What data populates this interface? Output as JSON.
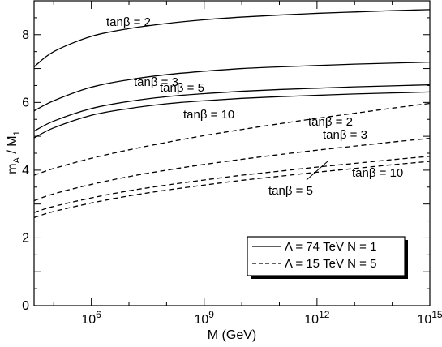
{
  "chart_data": {
    "type": "line",
    "title": "",
    "xlabel": "M (GeV)",
    "ylabel": "m_A / M_1",
    "x_scale": "log10",
    "xlim": [
      30000,
      1000000000000000
    ],
    "ylim": [
      0,
      9
    ],
    "x_ticks": [
      {
        "value": 1000000,
        "base": "10",
        "exp": "6"
      },
      {
        "value": 1000000000,
        "base": "10",
        "exp": "9"
      },
      {
        "value": 1000000000000,
        "base": "10",
        "exp": "12"
      },
      {
        "value": 1000000000000000,
        "base": "10",
        "exp": "15"
      }
    ],
    "y_ticks": [
      "0",
      "2",
      "4",
      "6",
      "8"
    ],
    "grid": false,
    "legend_position": "bottom-right",
    "legend": [
      {
        "text": "Λ = 74 TeV   N = 1",
        "style": "solid"
      },
      {
        "text": "Λ = 15 TeV   N = 5",
        "style": "dashed"
      }
    ],
    "series": [
      {
        "name": "tanβ = 2",
        "style": "solid",
        "x": [
          30000,
          100000,
          1000000,
          10000000,
          100000000,
          1000000000,
          10000000000,
          100000000000,
          1000000000000,
          10000000000000,
          100000000000000,
          1000000000000000
        ],
        "y": [
          7.05,
          7.5,
          7.95,
          8.18,
          8.33,
          8.44,
          8.52,
          8.58,
          8.63,
          8.67,
          8.71,
          8.74
        ]
      },
      {
        "name": "tanβ = 3",
        "style": "solid",
        "x": [
          30000,
          100000,
          1000000,
          10000000,
          100000000,
          1000000000,
          10000000000,
          100000000000,
          1000000000000,
          10000000000000,
          100000000000000,
          1000000000000000
        ],
        "y": [
          5.75,
          6.05,
          6.45,
          6.67,
          6.82,
          6.92,
          7.0,
          7.05,
          7.09,
          7.13,
          7.16,
          7.19
        ]
      },
      {
        "name": "tanβ = 5",
        "style": "solid",
        "x": [
          30000,
          100000,
          1000000,
          10000000,
          100000000,
          1000000000,
          10000000000,
          100000000000,
          1000000000000,
          10000000000000,
          100000000000000,
          1000000000000000
        ],
        "y": [
          5.15,
          5.45,
          5.82,
          6.03,
          6.17,
          6.26,
          6.33,
          6.38,
          6.42,
          6.46,
          6.49,
          6.52
        ]
      },
      {
        "name": "tanβ = 10",
        "style": "solid",
        "x": [
          30000,
          100000,
          1000000,
          10000000,
          100000000,
          1000000000,
          10000000000,
          100000000000,
          1000000000000,
          10000000000000,
          100000000000000,
          1000000000000000
        ],
        "y": [
          4.95,
          5.25,
          5.62,
          5.82,
          5.96,
          6.05,
          6.12,
          6.17,
          6.21,
          6.25,
          6.28,
          6.31
        ]
      },
      {
        "name": "tanβ = 2",
        "style": "dashed",
        "x": [
          30000,
          100000,
          1000000,
          10000000,
          100000000,
          1000000000,
          10000000000,
          100000000000,
          1000000000000,
          10000000000000,
          100000000000000,
          1000000000000000
        ],
        "y": [
          3.85,
          4.05,
          4.35,
          4.6,
          4.82,
          5.02,
          5.2,
          5.37,
          5.53,
          5.68,
          5.83,
          5.97
        ]
      },
      {
        "name": "tanβ = 3",
        "style": "dashed",
        "x": [
          30000,
          100000,
          1000000,
          10000000,
          100000000,
          1000000000,
          10000000000,
          100000000000,
          1000000000000,
          10000000000000,
          100000000000000,
          1000000000000000
        ],
        "y": [
          3.1,
          3.3,
          3.58,
          3.81,
          4.0,
          4.17,
          4.32,
          4.46,
          4.59,
          4.71,
          4.83,
          4.94
        ]
      },
      {
        "name": "tanβ = 5",
        "style": "dashed",
        "x": [
          30000,
          100000,
          1000000,
          10000000,
          100000000,
          1000000000,
          10000000000,
          100000000000,
          1000000000000,
          10000000000000,
          100000000000000,
          1000000000000000
        ],
        "y": [
          2.75,
          2.93,
          3.18,
          3.39,
          3.56,
          3.71,
          3.85,
          3.97,
          4.09,
          4.2,
          4.31,
          4.41
        ]
      },
      {
        "name": "tanβ = 10",
        "style": "dashed",
        "x": [
          30000,
          100000,
          1000000,
          10000000,
          100000000,
          1000000000,
          10000000000,
          100000000000,
          1000000000000,
          10000000000000,
          100000000000000,
          1000000000000000
        ],
        "y": [
          2.6,
          2.78,
          3.03,
          3.24,
          3.41,
          3.56,
          3.7,
          3.82,
          3.94,
          4.05,
          4.16,
          4.26
        ]
      }
    ]
  }
}
